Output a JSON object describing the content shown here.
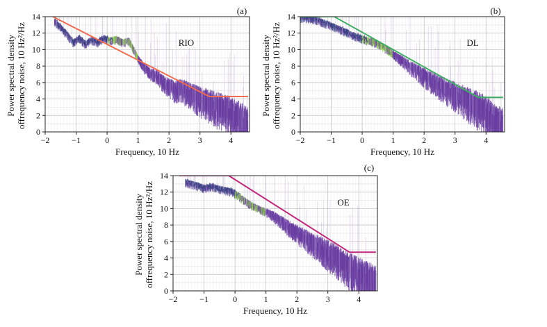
{
  "figure": {
    "colors": {
      "model_rio": "#f26b50",
      "model_dl": "#3fae63",
      "model_oe": "#c2257a",
      "noise_main": "#6a3ea1",
      "noise_light": "#b7a6d6",
      "noise_green": "#8fd646",
      "noise_dark": "#2a3f7a"
    }
  },
  "chart_data": [
    {
      "id": "a",
      "type": "line",
      "panel_tag": "(a)",
      "title": "RIO",
      "xlabel": "Frequency, 10 Hz",
      "ylabel": "Power spectral density offrequency noise, 10 Hz²/Hz",
      "xlim": [
        -2,
        4.6
      ],
      "ylim": [
        0,
        14
      ],
      "xticks": [
        -2,
        -1,
        0,
        1,
        2,
        3,
        4
      ],
      "yticks": [
        0,
        2,
        4,
        6,
        8,
        10,
        12,
        14
      ],
      "grid": true,
      "series": [
        {
          "name": "model",
          "color": "#f26b50",
          "x": [
            -1.75,
            3.3,
            4.55
          ],
          "y": [
            14,
            4.3,
            4.3
          ]
        },
        {
          "name": "measured_noise",
          "color": "#6a3ea1",
          "x": [
            -1.7,
            -1.5,
            -1.3,
            -1.1,
            -0.9,
            -0.7,
            -0.5,
            -0.3,
            -0.1,
            0.1,
            0.3,
            0.5,
            0.7,
            0.85,
            1.0,
            1.2,
            1.4,
            1.6,
            1.8,
            2.0,
            2.2,
            2.4,
            2.6,
            2.8,
            3.0,
            3.2,
            3.4,
            3.6,
            3.8,
            4.0,
            4.2,
            4.4,
            4.55
          ],
          "y": [
            13.5,
            12.8,
            12.0,
            11.0,
            11.5,
            10.8,
            11.3,
            11.0,
            11.5,
            11.2,
            11.4,
            11.0,
            11.2,
            10.2,
            9.0,
            8.0,
            7.3,
            7.0,
            6.3,
            5.8,
            5.4,
            5.6,
            5.2,
            4.8,
            4.4,
            4.1,
            3.8,
            3.5,
            3.1,
            2.8,
            2.3,
            1.7,
            1.3
          ]
        }
      ]
    },
    {
      "id": "b",
      "type": "line",
      "panel_tag": "(b)",
      "title": "DL",
      "xlabel": "Frequency, 10 Hz",
      "ylabel": "Power spectral density offrequency noise, 10 Hz²/Hz",
      "xlim": [
        -2,
        4.6
      ],
      "ylim": [
        0,
        14
      ],
      "xticks": [
        -2,
        -1,
        0,
        1,
        2,
        3,
        4
      ],
      "yticks": [
        0,
        2,
        4,
        6,
        8,
        10,
        12,
        14
      ],
      "grid": true,
      "series": [
        {
          "name": "model",
          "color": "#3fae63",
          "x": [
            -2.0,
            -0.9,
            3.75,
            4.55
          ],
          "y": [
            14,
            14,
            4.2,
            4.2
          ]
        },
        {
          "name": "measured_noise",
          "color": "#6a3ea1",
          "x": [
            -2.0,
            -1.7,
            -1.4,
            -1.1,
            -0.8,
            -0.5,
            -0.2,
            0.1,
            0.4,
            0.7,
            1.0,
            1.3,
            1.6,
            1.9,
            2.2,
            2.5,
            2.8,
            3.1,
            3.4,
            3.7,
            4.0,
            4.2,
            4.4,
            4.55
          ],
          "y": [
            14.0,
            13.9,
            13.6,
            13.2,
            12.7,
            12.2,
            11.7,
            11.3,
            11.0,
            10.4,
            9.6,
            8.8,
            8.0,
            7.3,
            6.6,
            6.0,
            5.4,
            4.8,
            4.2,
            3.6,
            2.9,
            2.2,
            1.5,
            1.1
          ]
        }
      ]
    },
    {
      "id": "c",
      "type": "line",
      "panel_tag": "(c)",
      "title": "OE",
      "xlabel": "Frequency, 10 Hz",
      "ylabel": "Power spectral density offrequency noise, 10 Hz²/Hz",
      "xlim": [
        -2,
        4.6
      ],
      "ylim": [
        0,
        14
      ],
      "xticks": [
        -2,
        -1,
        0,
        1,
        2,
        3,
        4
      ],
      "yticks": [
        0,
        2,
        4,
        6,
        8,
        10,
        12,
        14
      ],
      "grid": true,
      "series": [
        {
          "name": "model",
          "color": "#c2257a",
          "x": [
            -1.8,
            -0.2,
            3.7,
            4.55
          ],
          "y": [
            14,
            14,
            4.7,
            4.7
          ]
        },
        {
          "name": "measured_noise",
          "color": "#6a3ea1",
          "x": [
            -1.6,
            -1.3,
            -1.0,
            -0.7,
            -0.4,
            -0.1,
            0.2,
            0.5,
            0.8,
            1.1,
            1.4,
            1.7,
            2.0,
            2.3,
            2.6,
            2.9,
            3.2,
            3.5,
            3.8,
            4.1,
            4.3,
            4.55
          ],
          "y": [
            13.3,
            13.0,
            12.6,
            12.8,
            12.4,
            12.2,
            11.4,
            10.6,
            10.0,
            9.6,
            8.9,
            8.1,
            7.3,
            6.7,
            6.0,
            5.3,
            4.6,
            3.8,
            3.0,
            2.4,
            1.9,
            1.4
          ]
        }
      ]
    }
  ]
}
